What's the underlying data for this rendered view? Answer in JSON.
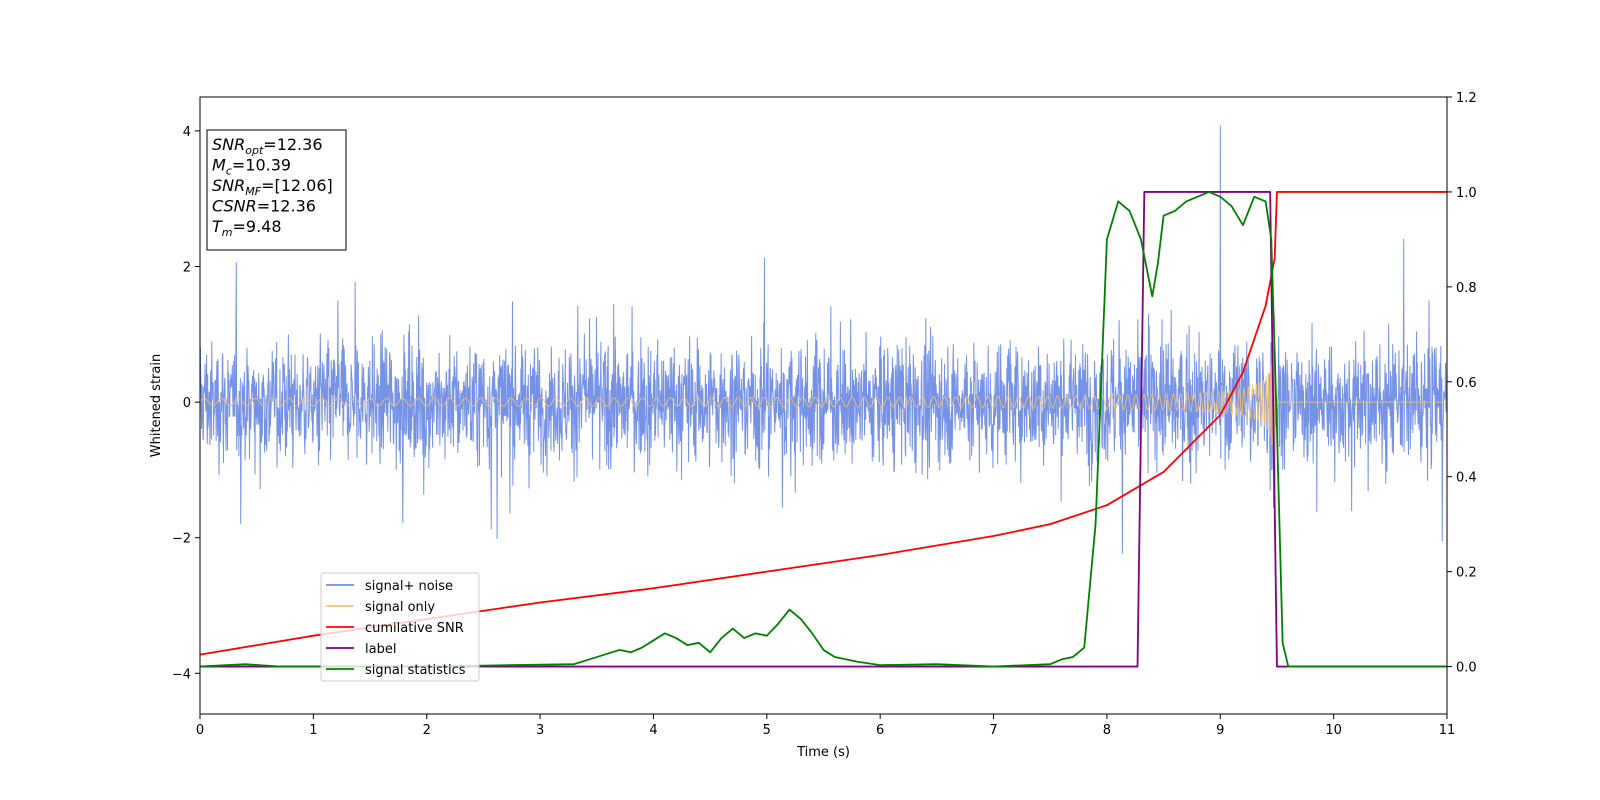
{
  "chart_data": {
    "type": "line",
    "xlabel": "Time (s)",
    "ylabel": "Whitened strain",
    "xlim": [
      0,
      11
    ],
    "ylim": [
      -4.6,
      4.5
    ],
    "ylim_right": [
      -0.1,
      1.2
    ],
    "xticks": [
      "0",
      "1",
      "2",
      "3",
      "4",
      "5",
      "6",
      "7",
      "8",
      "9",
      "10",
      "11"
    ],
    "yticks": [
      "−4",
      "−2",
      "0",
      "2",
      "4"
    ],
    "yticks_right": [
      "0.0",
      "0.2",
      "0.4",
      "0.6",
      "0.8",
      "1.0",
      "1.2"
    ],
    "legend_position": "lower-left",
    "annotation": {
      "lines": [
        {
          "main": "SNR",
          "sub": "opt",
          "rest": "=12.36"
        },
        {
          "main": "M",
          "sub": "c",
          "rest": "=10.39"
        },
        {
          "main": "SNR",
          "sub": "MF",
          "rest": "=[12.06]"
        },
        {
          "main": "CSNR",
          "sub": "",
          "rest": "=12.36"
        },
        {
          "main": "T",
          "sub": "m",
          "rest": "=9.48"
        }
      ]
    },
    "series": [
      {
        "name": "signal+ noise",
        "color": "#6f8ce6",
        "axis": "left",
        "description": "noisy whitened strain, amplitude ~±2 with spikes up to ~4.1 near t=9.0",
        "peak": {
          "x": 9.0,
          "y": 4.08
        }
      },
      {
        "name": "signal only",
        "color": "#f5c26b",
        "axis": "left",
        "description": "chirp waveform growing in amplitude until merger near t=9.48"
      },
      {
        "name": "cumilative SNR",
        "color": "#ff0000",
        "axis": "right",
        "x": [
          0,
          1,
          2,
          3,
          4,
          5,
          6,
          7,
          7.5,
          8,
          8.5,
          9,
          9.2,
          9.4,
          9.48,
          9.5,
          11
        ],
        "y": [
          0.025,
          0.065,
          0.1,
          0.135,
          0.165,
          0.2,
          0.235,
          0.275,
          0.3,
          0.34,
          0.41,
          0.53,
          0.62,
          0.76,
          0.86,
          1.0,
          1.0
        ]
      },
      {
        "name": "label",
        "color": "#800080",
        "axis": "right",
        "x": [
          0,
          8.27,
          8.33,
          9.44,
          9.5,
          11
        ],
        "y": [
          0,
          0,
          1,
          1,
          0,
          0
        ]
      },
      {
        "name": "signal statistics",
        "color": "#008000",
        "axis": "right",
        "x": [
          0,
          0.4,
          0.7,
          1.5,
          2.5,
          3.3,
          3.5,
          3.7,
          3.8,
          3.9,
          4.0,
          4.1,
          4.2,
          4.3,
          4.4,
          4.5,
          4.6,
          4.7,
          4.8,
          4.9,
          5.0,
          5.1,
          5.2,
          5.3,
          5.4,
          5.5,
          5.6,
          5.8,
          6.0,
          6.5,
          7.0,
          7.5,
          7.6,
          7.7,
          7.8,
          7.9,
          8.0,
          8.1,
          8.2,
          8.3,
          8.4,
          8.45,
          8.5,
          8.6,
          8.7,
          8.8,
          8.9,
          9.0,
          9.1,
          9.2,
          9.3,
          9.4,
          9.45,
          9.5,
          9.55,
          9.6,
          11
        ],
        "y": [
          0,
          0.005,
          0,
          0,
          0.002,
          0.005,
          0.02,
          0.035,
          0.03,
          0.04,
          0.055,
          0.07,
          0.06,
          0.045,
          0.05,
          0.03,
          0.06,
          0.08,
          0.06,
          0.07,
          0.065,
          0.09,
          0.12,
          0.1,
          0.07,
          0.035,
          0.02,
          0.01,
          0.003,
          0.005,
          0,
          0.005,
          0.015,
          0.02,
          0.04,
          0.3,
          0.9,
          0.98,
          0.96,
          0.9,
          0.78,
          0.85,
          0.95,
          0.96,
          0.98,
          0.99,
          1.0,
          0.99,
          0.97,
          0.93,
          0.99,
          0.98,
          0.9,
          0.5,
          0.05,
          0,
          0
        ]
      }
    ]
  }
}
